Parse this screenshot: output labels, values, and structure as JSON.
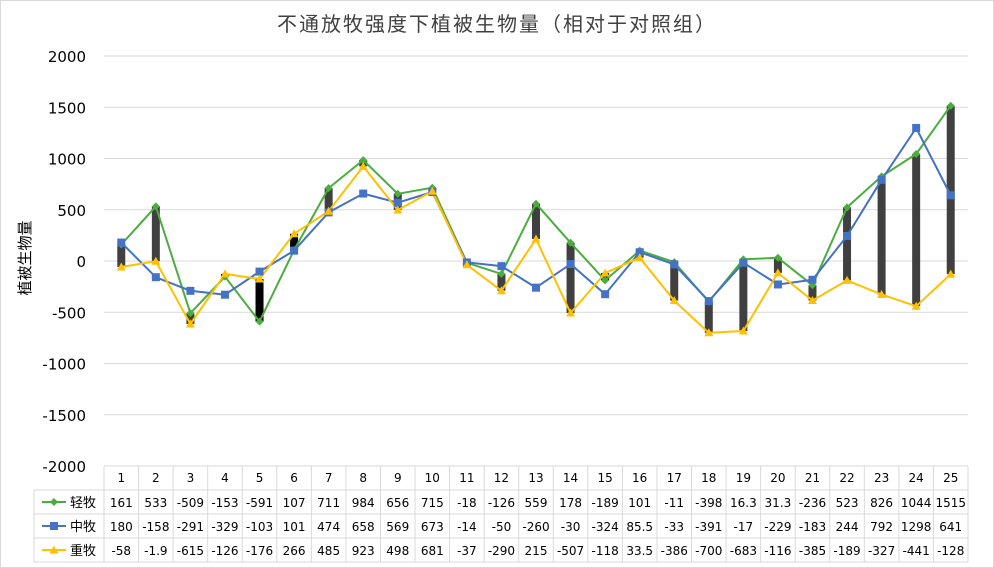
{
  "chart_data": {
    "type": "line",
    "title": "不通放牧强度下植被生物量（相对于对照组）",
    "xlabel": "",
    "ylabel": "植被生物量",
    "ylim": [
      -2000,
      2000
    ],
    "yticks": [
      2000,
      1500,
      1000,
      500,
      0,
      -500,
      -1000,
      -1500,
      -2000
    ],
    "categories": [
      "1",
      "2",
      "3",
      "4",
      "5",
      "6",
      "7",
      "8",
      "9",
      "10",
      "11",
      "12",
      "13",
      "14",
      "15",
      "16",
      "17",
      "18",
      "19",
      "20",
      "21",
      "22",
      "23",
      "24",
      "25"
    ],
    "grid": "horizontal",
    "high_low_lines": true,
    "up_down_bars": true,
    "data_table": true,
    "series": [
      {
        "name": "轻牧",
        "color": "#4cad3f",
        "marker": "diamond",
        "values": [
          161,
          533,
          -509,
          -153,
          -591,
          107,
          711,
          984,
          656,
          715,
          -18,
          -126,
          559,
          178,
          -189,
          101,
          -11,
          -398,
          16.3,
          31.3,
          -236,
          523,
          826,
          1044,
          1515
        ],
        "labels": [
          "161",
          "533",
          "-509",
          "-153",
          "-591",
          "107",
          "711",
          "984",
          "656",
          "715",
          "-18",
          "-126",
          "559",
          "178",
          "-189",
          "101",
          "-11",
          "-398",
          "16.3",
          "31.3",
          "-236",
          "523",
          "826",
          "1044",
          "1515"
        ]
      },
      {
        "name": "中牧",
        "color": "#4472c4",
        "marker": "square",
        "values": [
          180,
          -158,
          -291,
          -329,
          -103,
          101,
          474,
          658,
          569,
          673,
          -14,
          -50,
          -260,
          -30,
          -324,
          85.5,
          -33,
          -391,
          -17,
          -229,
          -183,
          244,
          792,
          1298,
          641
        ],
        "labels": [
          "180",
          "-158",
          "-291",
          "-329",
          "-103",
          "101",
          "474",
          "658",
          "569",
          "673",
          "-14",
          "-50",
          "-260",
          "-30",
          "-324",
          "85.5",
          "-33",
          "-391",
          "-17",
          "-229",
          "-183",
          "244",
          "792",
          "1298",
          "641"
        ]
      },
      {
        "name": "重牧",
        "color": "#ffc000",
        "marker": "triangle",
        "values": [
          -58,
          -1.9,
          -615,
          -126,
          -176,
          266,
          485,
          923,
          498,
          681,
          -37,
          -290,
          215,
          -507,
          -118,
          33.5,
          -386,
          -700,
          -683,
          -116,
          -385,
          -189,
          -327,
          -441,
          -128
        ],
        "labels": [
          "-58",
          "-1.9",
          "-615",
          "-126",
          "-176",
          "266",
          "485",
          "923",
          "498",
          "681",
          "-37",
          "-290",
          "215",
          "-507",
          "-118",
          "33.5",
          "-386",
          "-700",
          "-683",
          "-116",
          "-385",
          "-189",
          "-327",
          "-441",
          "-128"
        ]
      }
    ]
  }
}
